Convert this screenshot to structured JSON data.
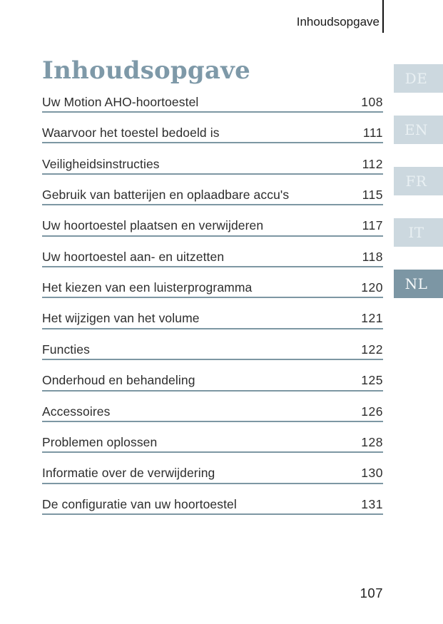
{
  "header": {
    "running_title": "Inhoudsopgave"
  },
  "title": "Inhoudsopgave",
  "toc": [
    {
      "label": "Uw Motion AHO-hoortoestel",
      "page": "108"
    },
    {
      "label": "Waarvoor het toestel bedoeld is",
      "page": "111"
    },
    {
      "label": "Veiligheidsinstructies",
      "page": "112"
    },
    {
      "label": "Gebruik van batterijen en oplaadbare accu's",
      "page": "115"
    },
    {
      "label": "Uw hoortoestel plaatsen en verwijderen",
      "page": "117"
    },
    {
      "label": "Uw hoortoestel aan- en uitzetten",
      "page": "118"
    },
    {
      "label": "Het kiezen van een luisterprogramma",
      "page": "120"
    },
    {
      "label": "Het wijzigen van het volume",
      "page": "121"
    },
    {
      "label": "Functies",
      "page": "122"
    },
    {
      "label": "Onderhoud en behandeling",
      "page": "125"
    },
    {
      "label": "Accessoires",
      "page": "126"
    },
    {
      "label": "Problemen oplossen",
      "page": "128"
    },
    {
      "label": "Informatie over de verwijdering",
      "page": "130"
    },
    {
      "label": "De configuratie van uw hoortoestel",
      "page": "131"
    }
  ],
  "language_tabs": [
    {
      "code": "DE",
      "active": false
    },
    {
      "code": "EN",
      "active": false
    },
    {
      "code": "FR",
      "active": false
    },
    {
      "code": "IT",
      "active": false
    },
    {
      "code": "NL",
      "active": true
    }
  ],
  "footer": {
    "page_number": "107"
  },
  "colors": {
    "accent": "#7d97a3",
    "title_text": "#7e99a8",
    "body_text": "#2d2d2d",
    "rule": "#7d97a3",
    "tab_inactive_bg": "#ccd8df",
    "tab_inactive_text": "#e9f0f3",
    "tab_active_bg": "#7c96a4",
    "tab_active_text": "#f6f9fa"
  }
}
